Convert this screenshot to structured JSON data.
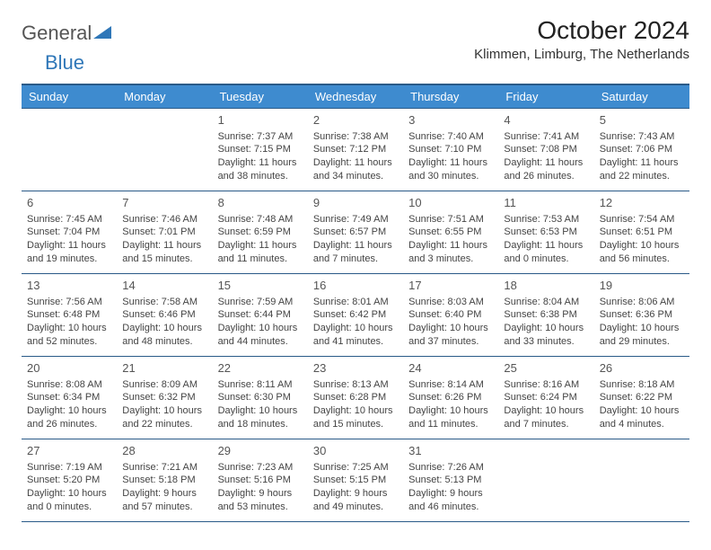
{
  "logo": {
    "text_gray": "General",
    "text_blue": "Blue"
  },
  "header": {
    "month_title": "October 2024",
    "location": "Klimmen, Limburg, The Netherlands"
  },
  "colors": {
    "header_bg": "#3e8bcf",
    "header_text": "#ffffff",
    "border": "#2a5a88",
    "body_text": "#444444",
    "daynum": "#555555",
    "logo_gray": "#555555",
    "logo_blue": "#2f77b8",
    "page_bg": "#ffffff"
  },
  "typography": {
    "title_fontsize": 28,
    "location_fontsize": 15,
    "dayheader_fontsize": 13,
    "daynum_fontsize": 13,
    "cell_fontsize": 11
  },
  "calendar": {
    "day_names": [
      "Sunday",
      "Monday",
      "Tuesday",
      "Wednesday",
      "Thursday",
      "Friday",
      "Saturday"
    ],
    "weeks": [
      [
        null,
        null,
        {
          "n": "1",
          "sunrise": "7:37 AM",
          "sunset": "7:15 PM",
          "daylight": "11 hours and 38 minutes."
        },
        {
          "n": "2",
          "sunrise": "7:38 AM",
          "sunset": "7:12 PM",
          "daylight": "11 hours and 34 minutes."
        },
        {
          "n": "3",
          "sunrise": "7:40 AM",
          "sunset": "7:10 PM",
          "daylight": "11 hours and 30 minutes."
        },
        {
          "n": "4",
          "sunrise": "7:41 AM",
          "sunset": "7:08 PM",
          "daylight": "11 hours and 26 minutes."
        },
        {
          "n": "5",
          "sunrise": "7:43 AM",
          "sunset": "7:06 PM",
          "daylight": "11 hours and 22 minutes."
        }
      ],
      [
        {
          "n": "6",
          "sunrise": "7:45 AM",
          "sunset": "7:04 PM",
          "daylight": "11 hours and 19 minutes."
        },
        {
          "n": "7",
          "sunrise": "7:46 AM",
          "sunset": "7:01 PM",
          "daylight": "11 hours and 15 minutes."
        },
        {
          "n": "8",
          "sunrise": "7:48 AM",
          "sunset": "6:59 PM",
          "daylight": "11 hours and 11 minutes."
        },
        {
          "n": "9",
          "sunrise": "7:49 AM",
          "sunset": "6:57 PM",
          "daylight": "11 hours and 7 minutes."
        },
        {
          "n": "10",
          "sunrise": "7:51 AM",
          "sunset": "6:55 PM",
          "daylight": "11 hours and 3 minutes."
        },
        {
          "n": "11",
          "sunrise": "7:53 AM",
          "sunset": "6:53 PM",
          "daylight": "11 hours and 0 minutes."
        },
        {
          "n": "12",
          "sunrise": "7:54 AM",
          "sunset": "6:51 PM",
          "daylight": "10 hours and 56 minutes."
        }
      ],
      [
        {
          "n": "13",
          "sunrise": "7:56 AM",
          "sunset": "6:48 PM",
          "daylight": "10 hours and 52 minutes."
        },
        {
          "n": "14",
          "sunrise": "7:58 AM",
          "sunset": "6:46 PM",
          "daylight": "10 hours and 48 minutes."
        },
        {
          "n": "15",
          "sunrise": "7:59 AM",
          "sunset": "6:44 PM",
          "daylight": "10 hours and 44 minutes."
        },
        {
          "n": "16",
          "sunrise": "8:01 AM",
          "sunset": "6:42 PM",
          "daylight": "10 hours and 41 minutes."
        },
        {
          "n": "17",
          "sunrise": "8:03 AM",
          "sunset": "6:40 PM",
          "daylight": "10 hours and 37 minutes."
        },
        {
          "n": "18",
          "sunrise": "8:04 AM",
          "sunset": "6:38 PM",
          "daylight": "10 hours and 33 minutes."
        },
        {
          "n": "19",
          "sunrise": "8:06 AM",
          "sunset": "6:36 PM",
          "daylight": "10 hours and 29 minutes."
        }
      ],
      [
        {
          "n": "20",
          "sunrise": "8:08 AM",
          "sunset": "6:34 PM",
          "daylight": "10 hours and 26 minutes."
        },
        {
          "n": "21",
          "sunrise": "8:09 AM",
          "sunset": "6:32 PM",
          "daylight": "10 hours and 22 minutes."
        },
        {
          "n": "22",
          "sunrise": "8:11 AM",
          "sunset": "6:30 PM",
          "daylight": "10 hours and 18 minutes."
        },
        {
          "n": "23",
          "sunrise": "8:13 AM",
          "sunset": "6:28 PM",
          "daylight": "10 hours and 15 minutes."
        },
        {
          "n": "24",
          "sunrise": "8:14 AM",
          "sunset": "6:26 PM",
          "daylight": "10 hours and 11 minutes."
        },
        {
          "n": "25",
          "sunrise": "8:16 AM",
          "sunset": "6:24 PM",
          "daylight": "10 hours and 7 minutes."
        },
        {
          "n": "26",
          "sunrise": "8:18 AM",
          "sunset": "6:22 PM",
          "daylight": "10 hours and 4 minutes."
        }
      ],
      [
        {
          "n": "27",
          "sunrise": "7:19 AM",
          "sunset": "5:20 PM",
          "daylight": "10 hours and 0 minutes."
        },
        {
          "n": "28",
          "sunrise": "7:21 AM",
          "sunset": "5:18 PM",
          "daylight": "9 hours and 57 minutes."
        },
        {
          "n": "29",
          "sunrise": "7:23 AM",
          "sunset": "5:16 PM",
          "daylight": "9 hours and 53 minutes."
        },
        {
          "n": "30",
          "sunrise": "7:25 AM",
          "sunset": "5:15 PM",
          "daylight": "9 hours and 49 minutes."
        },
        {
          "n": "31",
          "sunrise": "7:26 AM",
          "sunset": "5:13 PM",
          "daylight": "9 hours and 46 minutes."
        },
        null,
        null
      ]
    ],
    "labels": {
      "sunrise": "Sunrise:",
      "sunset": "Sunset:",
      "daylight": "Daylight:"
    }
  }
}
